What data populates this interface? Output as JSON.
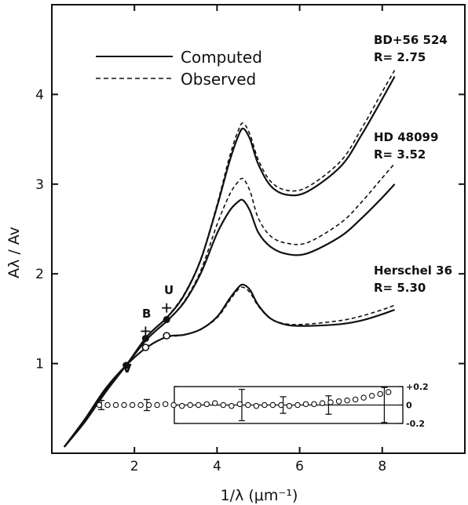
{
  "chart_data": {
    "type": "line",
    "title": "",
    "xlabel": "1/λ (μm⁻¹)",
    "ylabel": "Aλ / Av",
    "xlim": [
      0,
      10
    ],
    "ylim": [
      0,
      5
    ],
    "x_ticks": [
      "2",
      "4",
      "6",
      "8"
    ],
    "y_ticks": [
      "1",
      "2",
      "3",
      "4"
    ],
    "legend": {
      "placement": "top-left",
      "entries": [
        {
          "label": "Computed",
          "style": "solid"
        },
        {
          "label": "Observed",
          "style": "dashed"
        }
      ]
    },
    "band_labels": {
      "V": "V",
      "B": "B",
      "U": "U"
    },
    "series": [
      {
        "name": "BD+56 524",
        "r_label": "R= 2.75",
        "computed": [
          [
            0.3,
            0.07
          ],
          [
            0.8,
            0.35
          ],
          [
            1.3,
            0.68
          ],
          [
            1.8,
            0.98
          ],
          [
            2.3,
            1.3
          ],
          [
            2.8,
            1.52
          ],
          [
            3.2,
            1.76
          ],
          [
            3.6,
            2.15
          ],
          [
            4.0,
            2.75
          ],
          [
            4.3,
            3.25
          ],
          [
            4.5,
            3.52
          ],
          [
            4.63,
            3.62
          ],
          [
            4.8,
            3.5
          ],
          [
            5.0,
            3.22
          ],
          [
            5.3,
            2.98
          ],
          [
            5.7,
            2.88
          ],
          [
            6.2,
            2.92
          ],
          [
            7.0,
            3.2
          ],
          [
            7.5,
            3.55
          ],
          [
            8.0,
            3.95
          ],
          [
            8.3,
            4.2
          ]
        ],
        "observed": [
          [
            2.8,
            1.52
          ],
          [
            3.2,
            1.77
          ],
          [
            3.6,
            2.16
          ],
          [
            4.0,
            2.77
          ],
          [
            4.3,
            3.3
          ],
          [
            4.5,
            3.58
          ],
          [
            4.63,
            3.68
          ],
          [
            4.8,
            3.55
          ],
          [
            5.0,
            3.27
          ],
          [
            5.3,
            3.03
          ],
          [
            5.7,
            2.93
          ],
          [
            6.2,
            2.97
          ],
          [
            7.0,
            3.26
          ],
          [
            7.5,
            3.62
          ],
          [
            8.0,
            4.03
          ],
          [
            8.3,
            4.27
          ]
        ]
      },
      {
        "name": "HD 48099",
        "r_label": "R= 3.52",
        "computed": [
          [
            0.3,
            0.07
          ],
          [
            0.8,
            0.36
          ],
          [
            1.3,
            0.7
          ],
          [
            1.8,
            0.98
          ],
          [
            2.3,
            1.27
          ],
          [
            2.8,
            1.48
          ],
          [
            3.2,
            1.68
          ],
          [
            3.6,
            2.0
          ],
          [
            4.0,
            2.45
          ],
          [
            4.3,
            2.7
          ],
          [
            4.5,
            2.8
          ],
          [
            4.63,
            2.82
          ],
          [
            4.8,
            2.7
          ],
          [
            5.0,
            2.46
          ],
          [
            5.3,
            2.3
          ],
          [
            5.7,
            2.22
          ],
          [
            6.2,
            2.23
          ],
          [
            7.0,
            2.42
          ],
          [
            7.5,
            2.62
          ],
          [
            8.0,
            2.85
          ],
          [
            8.3,
            3.0
          ]
        ],
        "observed": [
          [
            2.8,
            1.48
          ],
          [
            3.2,
            1.69
          ],
          [
            3.6,
            2.03
          ],
          [
            4.0,
            2.55
          ],
          [
            4.3,
            2.88
          ],
          [
            4.5,
            3.02
          ],
          [
            4.63,
            3.06
          ],
          [
            4.8,
            2.92
          ],
          [
            5.0,
            2.62
          ],
          [
            5.3,
            2.42
          ],
          [
            5.7,
            2.34
          ],
          [
            6.2,
            2.35
          ],
          [
            7.0,
            2.57
          ],
          [
            7.5,
            2.8
          ],
          [
            8.0,
            3.07
          ],
          [
            8.3,
            3.23
          ]
        ]
      },
      {
        "name": "Herschel 36",
        "r_label": "R= 5.30",
        "computed": [
          [
            0.3,
            0.07
          ],
          [
            0.8,
            0.38
          ],
          [
            1.3,
            0.72
          ],
          [
            1.8,
            0.98
          ],
          [
            2.3,
            1.18
          ],
          [
            2.8,
            1.3
          ],
          [
            3.2,
            1.32
          ],
          [
            3.6,
            1.38
          ],
          [
            4.0,
            1.52
          ],
          [
            4.3,
            1.72
          ],
          [
            4.5,
            1.84
          ],
          [
            4.63,
            1.88
          ],
          [
            4.8,
            1.82
          ],
          [
            5.0,
            1.65
          ],
          [
            5.3,
            1.5
          ],
          [
            5.7,
            1.43
          ],
          [
            6.2,
            1.42
          ],
          [
            7.0,
            1.44
          ],
          [
            7.5,
            1.48
          ],
          [
            8.0,
            1.55
          ],
          [
            8.3,
            1.6
          ]
        ],
        "observed": [
          [
            2.8,
            1.3
          ],
          [
            3.2,
            1.32
          ],
          [
            3.6,
            1.38
          ],
          [
            4.0,
            1.51
          ],
          [
            4.3,
            1.7
          ],
          [
            4.5,
            1.82
          ],
          [
            4.63,
            1.85
          ],
          [
            4.8,
            1.79
          ],
          [
            5.0,
            1.64
          ],
          [
            5.3,
            1.5
          ],
          [
            5.7,
            1.44
          ],
          [
            6.2,
            1.44
          ],
          [
            7.0,
            1.48
          ],
          [
            7.5,
            1.53
          ],
          [
            8.0,
            1.6
          ],
          [
            8.3,
            1.65
          ]
        ]
      }
    ],
    "markers": [
      {
        "x": 1.8,
        "y": 0.98,
        "style": "filled-circle"
      },
      {
        "x": 2.27,
        "y": 1.36,
        "style": "plus"
      },
      {
        "x": 2.27,
        "y": 1.28,
        "style": "filled-circle"
      },
      {
        "x": 2.27,
        "y": 1.18,
        "style": "open-circle"
      },
      {
        "x": 2.78,
        "y": 1.62,
        "style": "plus"
      },
      {
        "x": 2.78,
        "y": 1.49,
        "style": "filled-circle"
      },
      {
        "x": 2.78,
        "y": 1.31,
        "style": "open-circle"
      }
    ],
    "inset": {
      "type": "scatter",
      "xlim": [
        0,
        10
      ],
      "ylim": [
        -0.2,
        0.2
      ],
      "y_ticks": [
        "+0.2",
        "0",
        "-0.2"
      ],
      "x": [
        1.15,
        1.35,
        1.55,
        1.75,
        1.95,
        2.15,
        2.35,
        2.55,
        2.75,
        2.95,
        3.15,
        3.35,
        3.55,
        3.75,
        3.95,
        4.15,
        4.35,
        4.55,
        4.75,
        4.95,
        5.15,
        5.35,
        5.55,
        5.75,
        5.95,
        6.15,
        6.35,
        6.55,
        6.75,
        6.95,
        7.15,
        7.35,
        7.55,
        7.75,
        7.95,
        8.15
      ],
      "values": [
        0.0,
        0.0,
        0.0,
        0.0,
        0.0,
        0.0,
        0.0,
        0.0,
        0.01,
        0.0,
        -0.01,
        0.0,
        0.0,
        0.01,
        0.02,
        0.0,
        -0.01,
        0.01,
        0.0,
        -0.01,
        0.0,
        0.0,
        0.0,
        -0.01,
        0.0,
        0.01,
        0.01,
        0.02,
        0.03,
        0.04,
        0.05,
        0.06,
        0.08,
        0.1,
        0.12,
        0.14
      ],
      "error_bars": [
        {
          "x": 1.2,
          "err": 0.05
        },
        {
          "x": 2.3,
          "err": 0.06
        },
        {
          "x": 4.6,
          "err": 0.17
        },
        {
          "x": 5.6,
          "err": 0.09
        },
        {
          "x": 6.7,
          "err": 0.1
        },
        {
          "x": 8.05,
          "err": 0.19
        }
      ]
    }
  }
}
